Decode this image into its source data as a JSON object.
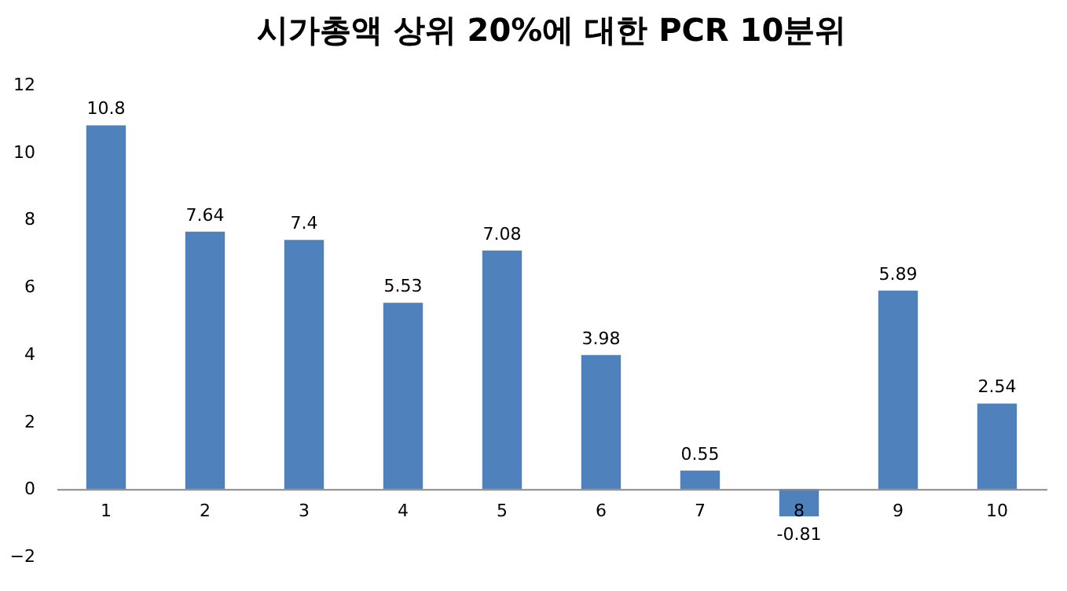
{
  "chart_data": {
    "type": "bar",
    "title": "시가총액 상위 20%에 대한 PCR 10분위",
    "categories": [
      "1",
      "2",
      "3",
      "4",
      "5",
      "6",
      "7",
      "8",
      "9",
      "10"
    ],
    "values": [
      10.8,
      7.64,
      7.4,
      5.53,
      7.08,
      3.98,
      0.55,
      -0.81,
      5.89,
      2.54
    ],
    "color": "#4f81bd",
    "ylim": [
      -2,
      12
    ],
    "yticks": [
      -2,
      0,
      2,
      4,
      6,
      8,
      10,
      12
    ],
    "grid": false,
    "data_labels": true
  }
}
